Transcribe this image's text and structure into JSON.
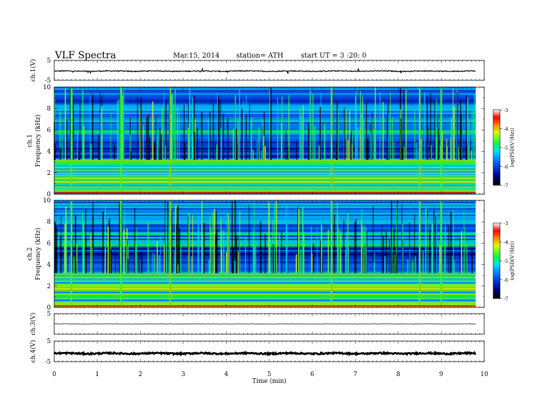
{
  "header": {
    "title": "VLF Spectra",
    "date": "Mar.15, 2014",
    "station": "station= ATH",
    "start_ut": "start UT =  3 :20: 0"
  },
  "chart_data": {
    "type": "heatmap",
    "xlabel": "Time (min)",
    "xlim": [
      0,
      10
    ],
    "x_ticks": [
      "0",
      "1",
      "2",
      "3",
      "4",
      "5",
      "6",
      "7",
      "8",
      "9",
      "10"
    ],
    "data_extent_min": 9.8,
    "panels": [
      {
        "kind": "waveform",
        "ylabel": "ch.1(V)",
        "ylim": [
          -5,
          5
        ],
        "y_ticks": [
          "5",
          "-5"
        ],
        "baseline": -0.4,
        "noise": 0.25
      },
      {
        "kind": "spectrogram",
        "ylabel": "Frequency (kHz)",
        "channel": "ch.1",
        "ylim": [
          0,
          10
        ],
        "y_ticks": [
          "0",
          "2",
          "4",
          "6",
          "8",
          "10"
        ],
        "colorbar": {
          "label": "log(PSD(V²/Hz))",
          "min": -7,
          "max": -3,
          "ticks": [
            "-3",
            "-4",
            "-5",
            "-6",
            "-7"
          ]
        },
        "strong_impulses_min": [
          0.4,
          1.55,
          2.7,
          6.45,
          8.5,
          9.0
        ]
      },
      {
        "kind": "spectrogram",
        "ylabel": "Frequency (kHz)",
        "channel": "ch.2",
        "ylim": [
          0,
          10
        ],
        "y_ticks": [
          "0",
          "2",
          "4",
          "6",
          "8",
          "10"
        ],
        "colorbar": {
          "label": "log(PSD(V²/Hz))",
          "min": -7,
          "max": -3,
          "ticks": [
            "-3",
            "-4",
            "-5",
            "-6",
            "-7"
          ]
        },
        "strong_impulses_min": [
          0.4,
          1.55,
          2.7,
          6.45,
          8.5,
          9.0
        ]
      },
      {
        "kind": "waveform",
        "ylabel": "ch.3(V)",
        "ylim": [
          -5,
          5
        ],
        "y_ticks": [
          "5"
        ],
        "baseline": 0.0,
        "noise": 0.05
      },
      {
        "kind": "waveform",
        "ylabel": "ch.4(V)",
        "ylim": [
          -5,
          5
        ],
        "y_ticks": [
          "5",
          "-5"
        ],
        "baseline": -1.0,
        "noise": 0.35
      }
    ]
  }
}
